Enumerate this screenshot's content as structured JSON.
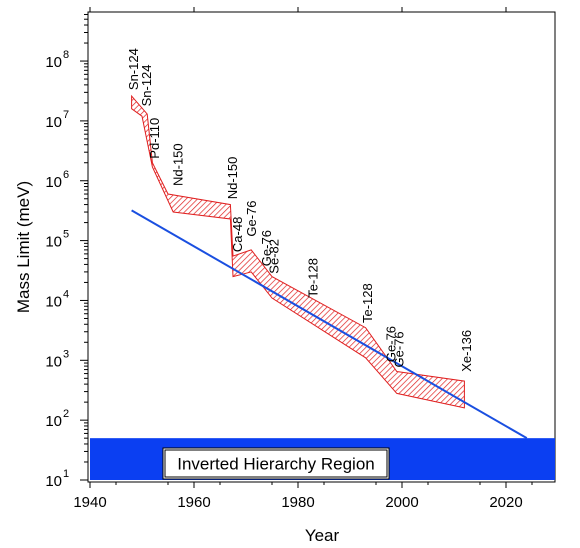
{
  "chart_data": {
    "type": "line",
    "title": "",
    "xlabel": "Year",
    "ylabel": "Mass Limit (meV)",
    "x_range": [
      1940,
      2030
    ],
    "y_range_log10": [
      1,
      9
    ],
    "y_scale": "log",
    "grid": false,
    "x_ticks": [
      {
        "value": 1940,
        "label": "1940"
      },
      {
        "value": 1960,
        "label": "1960"
      },
      {
        "value": 1980,
        "label": "1980"
      },
      {
        "value": 2000,
        "label": "2000"
      },
      {
        "value": 2020,
        "label": "2020"
      }
    ],
    "y_ticks": [
      {
        "exp": 1,
        "base": "10",
        "sup": "1"
      },
      {
        "exp": 2,
        "base": "10",
        "sup": "2"
      },
      {
        "exp": 3,
        "base": "10",
        "sup": "3"
      },
      {
        "exp": 4,
        "base": "10",
        "sup": "4"
      },
      {
        "exp": 5,
        "base": "10",
        "sup": "5"
      },
      {
        "exp": 6,
        "base": "10",
        "sup": "6"
      },
      {
        "exp": 7,
        "base": "10",
        "sup": "7"
      },
      {
        "exp": 8,
        "base": "10",
        "sup": "8"
      }
    ],
    "series": [
      {
        "kind": "band",
        "color": "#e02020",
        "upper": [
          [
            1948,
            26000000.0
          ],
          [
            1951,
            13000000.0
          ],
          [
            1952,
            2000000.0
          ],
          [
            1955,
            600000.0
          ],
          [
            1967,
            400000.0
          ],
          [
            1967.5,
            55000.0
          ],
          [
            1971,
            70000.0
          ],
          [
            1975,
            25000.0
          ],
          [
            1993,
            3500.0
          ],
          [
            1999,
            650.0
          ],
          [
            2012,
            450.0
          ]
        ],
        "lower": [
          [
            2012,
            160.0
          ],
          [
            1999,
            280.0
          ],
          [
            1993,
            1100.0
          ],
          [
            1975,
            11000.0
          ],
          [
            1971,
            30000.0
          ],
          [
            1967.5,
            25000.0
          ],
          [
            1967,
            230000.0
          ],
          [
            1956,
            300000.0
          ],
          [
            1952,
            1700000.0
          ],
          [
            1950,
            12000000.0
          ],
          [
            1948,
            16000000.0
          ]
        ]
      },
      {
        "kind": "trend",
        "color": "#1a4fe0",
        "points": [
          [
            1948,
            320000.0
          ],
          [
            2024,
            50
          ]
        ]
      }
    ],
    "region": {
      "label": "Inverted Hierarchy Region",
      "color": "#0b3ff2",
      "y_range": [
        10,
        50
      ],
      "x_range": [
        1940,
        2030
      ]
    },
    "annotations": [
      {
        "text": "Sn-124",
        "x": 1948.5,
        "y": 28000000.0
      },
      {
        "text": "Sn-124",
        "x": 1951,
        "y": 15000000.0
      },
      {
        "text": "Pd-110",
        "x": 1952.5,
        "y": 2000000.0
      },
      {
        "text": "Nd-150",
        "x": 1957,
        "y": 700000.0
      },
      {
        "text": "Nd-150",
        "x": 1967.5,
        "y": 420000.0
      },
      {
        "text": "Ca-48",
        "x": 1968.5,
        "y": 55000.0
      },
      {
        "text": "Ge-76",
        "x": 1971.2,
        "y": 100000.0
      },
      {
        "text": "Ge-76",
        "x": 1974,
        "y": 32000.0
      },
      {
        "text": "Se-82",
        "x": 1975.5,
        "y": 24000.0
      },
      {
        "text": "Te-128",
        "x": 1983,
        "y": 9500.0
      },
      {
        "text": "Te-128",
        "x": 1993.5,
        "y": 3600.0
      },
      {
        "text": "Ge-76",
        "x": 1998,
        "y": 800.0
      },
      {
        "text": "Ge-76",
        "x": 1999.5,
        "y": 650.0
      },
      {
        "text": "Xe-136",
        "x": 2012.5,
        "y": 550.0
      }
    ]
  }
}
